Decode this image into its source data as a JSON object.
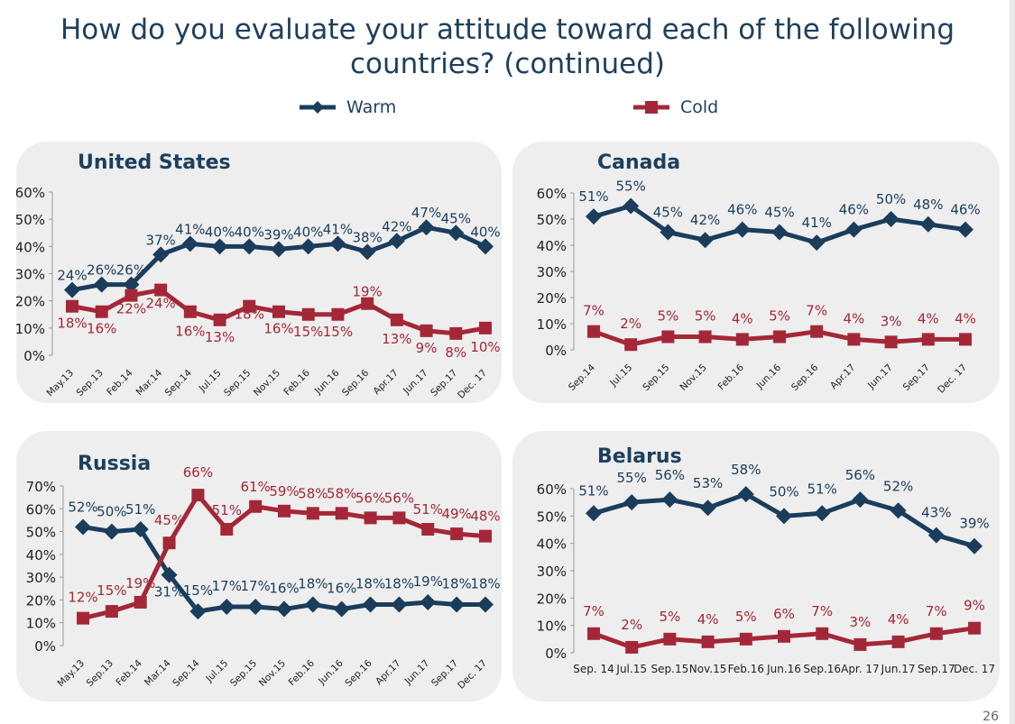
{
  "title_line1": "How do you evaluate your attitude toward each of the following",
  "title_line2": "countries? (continued)",
  "legend": {
    "warm": "Warm",
    "cold": "Cold"
  },
  "colors": {
    "warm": "#1b3d5c",
    "cold": "#a42738",
    "panel": "#eeeeee",
    "axis": "#666666"
  },
  "page_number": "26",
  "chart_data": [
    {
      "type": "line",
      "title": "United States",
      "categories": [
        "May.13",
        "Sep.13",
        "Feb.14",
        "Mar.14",
        "Sep.14",
        "Jul.15",
        "Sep.15",
        "Nov.15",
        "Feb.16",
        "Jun.16",
        "Sep.16",
        "Apr.17",
        "Jun.17",
        "Sep.17",
        "Dec. 17"
      ],
      "yticks": [
        "0%",
        "10%",
        "20%",
        "30%",
        "40%",
        "50%",
        "60%"
      ],
      "ylim": [
        0,
        60
      ],
      "grid": false,
      "legend_position": "top",
      "series": [
        {
          "name": "Warm",
          "values": [
            24,
            26,
            26,
            37,
            41,
            40,
            40,
            39,
            40,
            41,
            38,
            42,
            47,
            45,
            40
          ],
          "labels": [
            "24%",
            "26%",
            "26%",
            "37%",
            "41%",
            "40%",
            "40%",
            "39%",
            "40%",
            "41%",
            "38%",
            "42%",
            "47%",
            "45%",
            "40%"
          ]
        },
        {
          "name": "Cold",
          "values": [
            18,
            16,
            22,
            24,
            16,
            13,
            18,
            16,
            15,
            15,
            19,
            13,
            9,
            8,
            10
          ],
          "labels": [
            "18%",
            "16%",
            "22%",
            "24%",
            "16%",
            "13%",
            "18%",
            "16%",
            "15%",
            "15%",
            "19%",
            "13%",
            "9%",
            "8%",
            "10%"
          ]
        }
      ]
    },
    {
      "type": "line",
      "title": "Canada",
      "categories": [
        "Sep.14",
        "Jul.15",
        "Sep.15",
        "Nov.15",
        "Feb.16",
        "Jun.16",
        "Sep.16",
        "Apr.17",
        "Jun.17",
        "Sep.17",
        "Dec. 17"
      ],
      "yticks": [
        "0%",
        "10%",
        "20%",
        "30%",
        "40%",
        "50%",
        "60%"
      ],
      "ylim": [
        0,
        60
      ],
      "grid": false,
      "series": [
        {
          "name": "Warm",
          "values": [
            51,
            55,
            45,
            42,
            46,
            45,
            41,
            46,
            50,
            48,
            46
          ],
          "labels": [
            "51%",
            "55%",
            "45%",
            "42%",
            "46%",
            "45%",
            "41%",
            "46%",
            "50%",
            "48%",
            "46%"
          ]
        },
        {
          "name": "Cold",
          "values": [
            7,
            2,
            5,
            5,
            4,
            5,
            7,
            4,
            3,
            4,
            4
          ],
          "labels": [
            "7%",
            "2%",
            "5%",
            "5%",
            "4%",
            "5%",
            "7%",
            "4%",
            "3%",
            "4%",
            "4%"
          ]
        }
      ]
    },
    {
      "type": "line",
      "title": "Russia",
      "categories": [
        "May.13",
        "Sep.13",
        "Feb.14",
        "Mar.14",
        "Sep.14",
        "Jul.15",
        "Sep.15",
        "Nov.15",
        "Feb.16",
        "Jun.16",
        "Sep.16",
        "Apr.17",
        "Jun.17",
        "Sep.17",
        "Dec. 17"
      ],
      "yticks": [
        "0%",
        "10%",
        "20%",
        "30%",
        "40%",
        "50%",
        "60%",
        "70%"
      ],
      "ylim": [
        0,
        70
      ],
      "grid": false,
      "series": [
        {
          "name": "Warm",
          "values": [
            52,
            50,
            51,
            31,
            15,
            17,
            17,
            16,
            18,
            16,
            18,
            18,
            19,
            18,
            18
          ],
          "labels": [
            "52%",
            "50%",
            "51%",
            "31%",
            "15%",
            "17%",
            "17%",
            "16%",
            "18%",
            "16%",
            "18%",
            "18%",
            "19%",
            "18%",
            "18%"
          ]
        },
        {
          "name": "Cold",
          "values": [
            12,
            15,
            19,
            45,
            66,
            51,
            61,
            59,
            58,
            58,
            56,
            56,
            51,
            49,
            48
          ],
          "labels": [
            "12%",
            "15%",
            "19%",
            "45%",
            "66%",
            "51%",
            "61%",
            "59%",
            "58%",
            "58%",
            "56%",
            "56%",
            "51%",
            "49%",
            "48%"
          ]
        }
      ]
    },
    {
      "type": "line",
      "title": "Belarus",
      "categories": [
        "Sep. 14",
        "Jul.15",
        "Sep.15",
        "Nov.15",
        "Feb.16",
        "Jun.16",
        "Sep.16",
        "Apr. 17",
        "Jun.17",
        "Sep.17",
        "Dec. 17"
      ],
      "yticks": [
        "0%",
        "10%",
        "20%",
        "30%",
        "40%",
        "50%",
        "60%"
      ],
      "ylim": [
        0,
        60
      ],
      "grid": false,
      "series": [
        {
          "name": "Warm",
          "values": [
            51,
            55,
            56,
            53,
            58,
            50,
            51,
            56,
            52,
            43,
            39
          ],
          "labels": [
            "51%",
            "55%",
            "56%",
            "53%",
            "58%",
            "50%",
            "51%",
            "56%",
            "52%",
            "43%",
            "39%"
          ]
        },
        {
          "name": "Cold",
          "values": [
            7,
            2,
            5,
            4,
            5,
            6,
            7,
            3,
            4,
            7,
            9
          ],
          "labels": [
            "7%",
            "2%",
            "5%",
            "4%",
            "5%",
            "6%",
            "7%",
            "3%",
            "4%",
            "7%",
            "9%"
          ]
        }
      ]
    }
  ]
}
